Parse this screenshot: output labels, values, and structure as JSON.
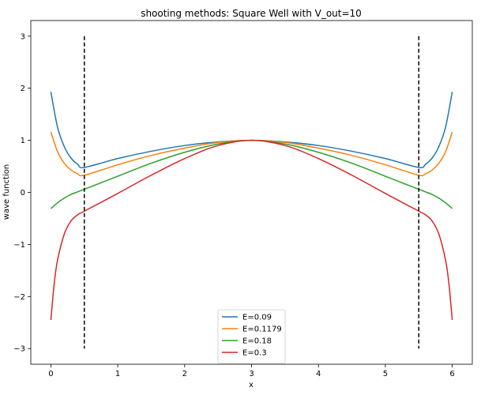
{
  "chart_data": {
    "type": "line",
    "title": "shooting methods: Square Well with V_out=10",
    "xlabel": "x",
    "ylabel": "wave function",
    "xlim": [
      -0.3,
      6.3
    ],
    "ylim": [
      -3.3,
      3.3
    ],
    "xticks": [
      0,
      1,
      2,
      3,
      4,
      5,
      6
    ],
    "yticks": [
      -3,
      -2,
      -1,
      0,
      1,
      2,
      3
    ],
    "grid": false,
    "legend_position": "bottom-center",
    "well_walls": {
      "x": [
        0.5,
        5.5
      ],
      "y_range": [
        -3,
        3
      ],
      "color": "#000000",
      "style": "dashed"
    },
    "series": [
      {
        "name": "E=0.09",
        "color": "#1f77b4",
        "x": [
          0,
          0.1,
          0.2,
          0.3,
          0.4,
          0.5,
          1.0,
          1.5,
          2.0,
          2.5,
          3.0,
          3.5,
          4.0,
          4.5,
          5.0,
          5.5,
          5.6,
          5.7,
          5.8,
          5.9,
          6.0
        ],
        "y": [
          1.93,
          1.25,
          0.88,
          0.66,
          0.54,
          0.48,
          0.65,
          0.79,
          0.9,
          0.97,
          1.0,
          0.97,
          0.9,
          0.79,
          0.65,
          0.48,
          0.54,
          0.66,
          0.88,
          1.25,
          1.93
        ]
      },
      {
        "name": "E=0.1179",
        "color": "#ff7f0e",
        "x": [
          0,
          0.1,
          0.2,
          0.3,
          0.4,
          0.5,
          1.0,
          1.5,
          2.0,
          2.5,
          3.0,
          3.5,
          4.0,
          4.5,
          5.0,
          5.5,
          5.6,
          5.7,
          5.8,
          5.9,
          6.0
        ],
        "y": [
          1.16,
          0.78,
          0.56,
          0.43,
          0.36,
          0.33,
          0.53,
          0.71,
          0.85,
          0.96,
          1.0,
          0.96,
          0.85,
          0.71,
          0.53,
          0.33,
          0.36,
          0.43,
          0.56,
          0.78,
          1.16
        ]
      },
      {
        "name": "E=0.18",
        "color": "#2ca02c",
        "x": [
          0,
          0.1,
          0.2,
          0.3,
          0.4,
          0.5,
          1.0,
          1.5,
          2.0,
          2.5,
          3.0,
          3.5,
          4.0,
          4.5,
          5.0,
          5.5,
          5.6,
          5.7,
          5.8,
          5.9,
          6.0
        ],
        "y": [
          -0.31,
          -0.2,
          -0.11,
          -0.04,
          0.01,
          0.06,
          0.31,
          0.56,
          0.77,
          0.93,
          1.0,
          0.93,
          0.77,
          0.56,
          0.31,
          0.06,
          0.01,
          -0.04,
          -0.11,
          -0.2,
          -0.31
        ]
      },
      {
        "name": "E=0.3",
        "color": "#d62728",
        "x": [
          0,
          0.05,
          0.1,
          0.2,
          0.3,
          0.4,
          0.5,
          1.0,
          1.5,
          2.0,
          2.5,
          3.0,
          3.5,
          4.0,
          4.5,
          5.0,
          5.5,
          5.6,
          5.7,
          5.8,
          5.9,
          5.95,
          6.0
        ],
        "y": [
          -2.45,
          -1.75,
          -1.3,
          -0.8,
          -0.55,
          -0.43,
          -0.36,
          -0.02,
          0.33,
          0.65,
          0.9,
          1.0,
          0.9,
          0.65,
          0.33,
          -0.02,
          -0.36,
          -0.43,
          -0.55,
          -0.8,
          -1.3,
          -1.75,
          -2.45
        ]
      }
    ]
  }
}
